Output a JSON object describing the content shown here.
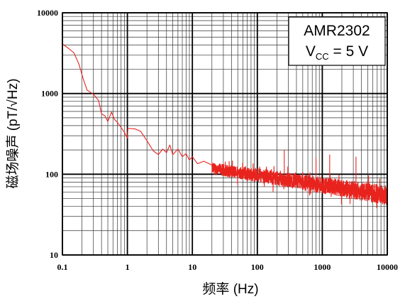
{
  "chart_data": {
    "type": "line",
    "xscale": "log",
    "yscale": "log",
    "xlim": [
      0.1,
      10000
    ],
    "ylim": [
      10,
      10000
    ],
    "grid": true,
    "xlabel": "频率 (Hz)",
    "ylabel": "磁场噪声 (pT/√Hz)",
    "x_ticks": [
      "0.1",
      "1",
      "10",
      "100",
      "1000",
      "10000"
    ],
    "y_ticks": [
      "10",
      "100",
      "1000",
      "10000"
    ],
    "annotation": {
      "line1": "AMR2302",
      "line2_main": "V",
      "line2_sub": "CC",
      "line2_rest": " = 5 V"
    },
    "series": [
      {
        "color": "#e8231e",
        "points": [
          [
            0.1,
            4100
          ],
          [
            0.12,
            3700
          ],
          [
            0.15,
            3200
          ],
          [
            0.18,
            2300
          ],
          [
            0.21,
            1500
          ],
          [
            0.24,
            1100
          ],
          [
            0.3,
            980
          ],
          [
            0.36,
            820
          ],
          [
            0.4,
            560
          ],
          [
            0.45,
            530
          ],
          [
            0.5,
            450
          ],
          [
            0.57,
            590
          ],
          [
            0.63,
            480
          ],
          [
            0.7,
            440
          ],
          [
            0.8,
            380
          ],
          [
            0.9,
            330
          ],
          [
            1.0,
            280
          ],
          [
            1.02,
            370
          ],
          [
            1.3,
            365
          ],
          [
            1.6,
            340
          ],
          [
            2.0,
            260
          ],
          [
            2.5,
            195
          ],
          [
            3.0,
            175
          ],
          [
            3.5,
            205
          ],
          [
            4.0,
            185
          ],
          [
            4.5,
            230
          ],
          [
            5.0,
            175
          ],
          [
            6.0,
            205
          ],
          [
            7.0,
            165
          ],
          [
            8.0,
            180
          ],
          [
            9.0,
            150
          ],
          [
            10.0,
            165
          ],
          [
            12.0,
            135
          ],
          [
            15.0,
            145
          ],
          [
            20.0,
            130
          ]
        ],
        "noise_band": {
          "x_start": 20,
          "x_end": 10000,
          "mean_start": 118,
          "mean_end": 55,
          "spread_start": 0.07,
          "spread_end": 0.12,
          "spikes": [
            [
              260,
              200
            ],
            [
              1300,
              175
            ],
            [
              800,
              160
            ],
            [
              3300,
              165
            ]
          ]
        }
      }
    ]
  }
}
